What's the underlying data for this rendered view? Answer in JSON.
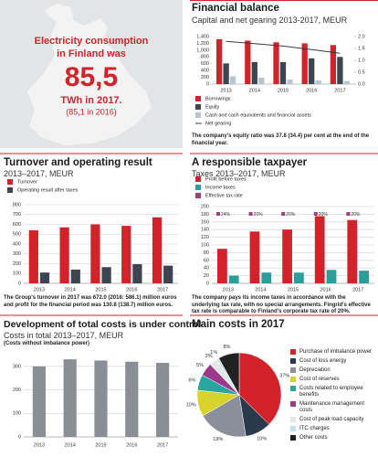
{
  "highlight": {
    "heading": [
      "Electricity consumption",
      "in Finland was"
    ],
    "value": "85,5",
    "unit": "TWh in 2017.",
    "note": "(85,1 in 2016)"
  },
  "chart_data": [
    {
      "type": "bar",
      "title": "Financial balance",
      "subtitle": "Capital and net gearing 2013-2017, MEUR",
      "categories": [
        "2013",
        "2014",
        "2015",
        "2016",
        "2017"
      ],
      "series": [
        {
          "name": "Borrowings",
          "color": "#d2232a",
          "values": [
            1320,
            1280,
            1230,
            1200,
            1150
          ]
        },
        {
          "name": "Equity",
          "color": "#3d4650",
          "values": [
            610,
            650,
            650,
            760,
            800
          ]
        },
        {
          "name": "Cash and cash equivalents and financial assets",
          "color": "#b9c6d2",
          "values": [
            230,
            190,
            130,
            110,
            90
          ]
        },
        {
          "name": "Net gearing",
          "color": "#3a3a3a",
          "type": "line",
          "axis": "y2",
          "values": [
            1.8,
            1.7,
            1.6,
            1.45,
            1.3
          ]
        }
      ],
      "ylim": [
        0,
        1400
      ],
      "yticks": [
        0,
        200,
        400,
        600,
        800,
        {
          "value": 1000,
          "label": "1,000"
        },
        {
          "value": 1200,
          "label": "1,200"
        },
        {
          "value": 1400,
          "label": "1,400"
        }
      ],
      "y2lim": [
        0,
        2
      ],
      "y2ticks": [
        {
          "value": 0,
          "label": "0.0"
        },
        0.5,
        {
          "value": 1,
          "label": "1.0"
        },
        1.5,
        {
          "value": 2,
          "label": "2.0"
        }
      ],
      "grid": false,
      "note": "The company's equity ratio was 37.8 (34.4) per cent at the end of the financial year."
    },
    {
      "type": "bar",
      "title": "Turnover and operating result",
      "subtitle": "2013–2017, MEUR",
      "categories": [
        "2013",
        "2014",
        "2015",
        "2016",
        "2017"
      ],
      "series": [
        {
          "name": "Turnover",
          "color": "#d2232a",
          "values": [
            540,
            570,
            600,
            585,
            672
          ]
        },
        {
          "name": "Operating result after taxes",
          "color": "#3d4650",
          "values": [
            110,
            140,
            165,
            195,
            180
          ]
        }
      ],
      "ylim": [
        0,
        800
      ],
      "yticks": [
        0,
        100,
        200,
        300,
        400,
        500,
        600,
        700,
        800
      ],
      "grid": true,
      "note": "The Group's turnover in 2017 was 672.0 (2016: 586.1) million euros and profit for the financial period was 130.8 (138.7) million euros."
    },
    {
      "type": "bar",
      "title": "A responsible taxpayer",
      "subtitle": "Taxes 2013–2017, MEUR",
      "categories": [
        "2013",
        "2014",
        "2015",
        "2016",
        "2017"
      ],
      "series": [
        {
          "name": "Profit before taxes",
          "color": "#d2232a",
          "values": [
            90,
            135,
            140,
            175,
            165
          ]
        },
        {
          "name": "Income taxes",
          "color": "#2b9e9a",
          "values": [
            20,
            28,
            28,
            35,
            33
          ]
        },
        {
          "name": "Effective tax rate",
          "color": "#a0407a",
          "type": "marker",
          "values": [
            24,
            20,
            20,
            20,
            20
          ],
          "value_labels": [
            "24%",
            "20%",
            "20%",
            "20%",
            "20%"
          ]
        }
      ],
      "ylim": [
        0,
        200
      ],
      "yticks": [
        0,
        20,
        40,
        60,
        80,
        100,
        120,
        140,
        160,
        180,
        200
      ],
      "grid": true,
      "note": "The company pays its income taxes in accordance with the underlying tax rate, with no special arrangements. Fingrid's effective tax rate is comparable to Finland's corporate tax rate of 20%."
    },
    {
      "type": "bar",
      "title": "Development of total costs is under control",
      "subtitle": "Costs in total 2013–2017, MEUR",
      "note": "(Costs without imbalance power)",
      "categories": [
        "2013",
        "2014",
        "2015",
        "2016",
        "2017"
      ],
      "values": [
        300,
        330,
        325,
        320,
        315
      ],
      "color": "#8a8f96",
      "ylim": [
        0,
        350
      ],
      "yticks": [
        0,
        100,
        200,
        300
      ],
      "grid": true
    },
    {
      "type": "pie",
      "title": "Main costs in 2017",
      "categories": [
        "Purchase of imbalance power",
        "Cost of loss energy",
        "Depreciation",
        "Cost of reserves",
        "Costs related to employee benefits",
        "Maintenance management costs",
        "Cost of peak load capacity",
        "ITC charges",
        "Other costs"
      ],
      "values": [
        37,
        10,
        19,
        10,
        6,
        5,
        3,
        1,
        8
      ],
      "value_labels": [
        "37%",
        "10%",
        "19%",
        "10%",
        "6%",
        "5%",
        "3%",
        "1%",
        "8%"
      ],
      "colors": [
        "#d2232a",
        "#2b3a4a",
        "#8a8f99",
        "#d9d22a",
        "#2aa6a0",
        "#9b3a8c",
        "#e6e6e6",
        "#bfe3ef",
        "#222222"
      ]
    }
  ]
}
